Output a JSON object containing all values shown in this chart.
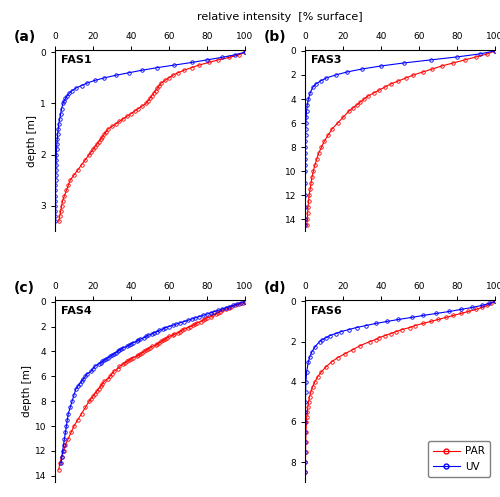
{
  "title": "relative intensity  [% surface]",
  "ylabel": "depth [m]",
  "panels": [
    "(a)",
    "(b)",
    "(c)",
    "(d)"
  ],
  "labels": [
    "FAS1",
    "FAS3",
    "FAS4",
    "FAS6"
  ],
  "par_color": "#FF0000",
  "uv_color": "#0000FF",
  "marker_size": 2.5,
  "line_width": 0.8,
  "fas1": {
    "depth_max": 3.5,
    "ylim_top": -0.05,
    "yticks": [
      0,
      1,
      2,
      3
    ],
    "xlim": [
      0,
      100
    ],
    "par_depth": [
      0.0,
      0.05,
      0.1,
      0.15,
      0.2,
      0.25,
      0.3,
      0.35,
      0.4,
      0.45,
      0.5,
      0.55,
      0.6,
      0.65,
      0.7,
      0.75,
      0.8,
      0.85,
      0.9,
      0.95,
      1.0,
      1.05,
      1.1,
      1.15,
      1.2,
      1.25,
      1.3,
      1.35,
      1.4,
      1.45,
      1.5,
      1.55,
      1.6,
      1.65,
      1.7,
      1.75,
      1.8,
      1.85,
      1.9,
      1.95,
      2.0,
      2.1,
      2.2,
      2.3,
      2.4,
      2.5,
      2.6,
      2.7,
      2.8,
      2.9,
      3.0,
      3.1,
      3.2,
      3.3
    ],
    "par_intensity": [
      100,
      97,
      92,
      86,
      81,
      76,
      72,
      68,
      65,
      62,
      60,
      58,
      56,
      55,
      54,
      53,
      52,
      51,
      50,
      49,
      48,
      46,
      44,
      42,
      40,
      38,
      36,
      34,
      32,
      30,
      28,
      27,
      26,
      25,
      24,
      23,
      22,
      21,
      20,
      19,
      18,
      16,
      14,
      12,
      10,
      8,
      7,
      6,
      5,
      4,
      3.5,
      3.0,
      2.5,
      2.0
    ],
    "uv_depth": [
      0.0,
      0.05,
      0.1,
      0.15,
      0.2,
      0.25,
      0.3,
      0.35,
      0.4,
      0.45,
      0.5,
      0.55,
      0.6,
      0.65,
      0.7,
      0.75,
      0.8,
      0.85,
      0.9,
      0.95,
      1.0,
      1.1,
      1.2,
      1.3,
      1.4,
      1.5,
      1.6,
      1.7,
      1.8,
      1.9,
      2.0,
      2.1,
      2.2,
      2.3,
      2.4,
      2.5,
      2.6,
      2.7,
      2.8,
      2.9,
      3.0,
      3.1,
      3.2,
      3.3
    ],
    "uv_intensity": [
      100,
      95,
      88,
      80,
      72,
      63,
      54,
      46,
      39,
      32,
      26,
      21,
      17,
      14,
      11,
      9,
      7.5,
      6.5,
      5.5,
      4.8,
      4.2,
      3.5,
      3.0,
      2.5,
      2.0,
      1.7,
      1.4,
      1.2,
      1.0,
      0.8,
      0.7,
      0.6,
      0.5,
      0.4,
      0.35,
      0.3,
      0.25,
      0.2,
      0.18,
      0.15,
      0.12,
      0.1,
      0.08,
      0.06
    ]
  },
  "fas3": {
    "depth_max": 15.0,
    "ylim_top": -0.1,
    "yticks": [
      0,
      2,
      4,
      6,
      8,
      10,
      12,
      14
    ],
    "xlim": [
      0,
      100
    ],
    "par_depth": [
      0.0,
      0.25,
      0.5,
      0.75,
      1.0,
      1.25,
      1.5,
      1.75,
      2.0,
      2.25,
      2.5,
      2.75,
      3.0,
      3.25,
      3.5,
      3.75,
      4.0,
      4.25,
      4.5,
      4.75,
      5.0,
      5.5,
      6.0,
      6.5,
      7.0,
      7.5,
      8.0,
      8.5,
      9.0,
      9.5,
      10.0,
      10.5,
      11.0,
      11.5,
      12.0,
      12.5,
      13.0,
      13.5,
      14.0,
      14.5
    ],
    "par_intensity": [
      100,
      96,
      90,
      84,
      78,
      72,
      67,
      62,
      57,
      53,
      49,
      45,
      42,
      39,
      36,
      33,
      31,
      29,
      27,
      25,
      23,
      20,
      17,
      14,
      12,
      10,
      8.5,
      7,
      6,
      5,
      4.2,
      3.5,
      3.0,
      2.5,
      2.0,
      1.7,
      1.4,
      1.2,
      1.0,
      0.8
    ],
    "uv_depth": [
      0.0,
      0.25,
      0.5,
      0.75,
      1.0,
      1.25,
      1.5,
      1.75,
      2.0,
      2.25,
      2.5,
      2.75,
      3.0,
      3.5,
      4.0,
      4.5,
      5.0,
      5.5,
      6.0,
      6.5,
      7.0,
      7.5,
      8.0,
      8.5,
      9.0,
      9.5,
      10.0,
      11.0,
      12.0,
      13.0,
      14.0,
      14.5
    ],
    "uv_intensity": [
      100,
      92,
      80,
      66,
      52,
      40,
      30,
      22,
      16,
      11,
      8,
      5.5,
      4.0,
      2.5,
      1.6,
      1.0,
      0.65,
      0.42,
      0.28,
      0.18,
      0.12,
      0.08,
      0.055,
      0.038,
      0.027,
      0.019,
      0.013,
      0.007,
      0.004,
      0.002,
      0.001,
      0.001
    ]
  },
  "fas4": {
    "depth_max": 14.5,
    "ylim_top": -0.1,
    "yticks": [
      0,
      2,
      4,
      6,
      8,
      10,
      12,
      14
    ],
    "xlim": [
      0,
      100
    ],
    "par_depth": [
      0.0,
      0.1,
      0.2,
      0.3,
      0.4,
      0.5,
      0.6,
      0.7,
      0.8,
      0.9,
      1.0,
      1.1,
      1.2,
      1.3,
      1.4,
      1.5,
      1.6,
      1.7,
      1.8,
      1.9,
      2.0,
      2.1,
      2.2,
      2.3,
      2.4,
      2.5,
      2.6,
      2.7,
      2.8,
      2.9,
      3.0,
      3.1,
      3.2,
      3.3,
      3.4,
      3.5,
      3.6,
      3.7,
      3.8,
      3.9,
      4.0,
      4.1,
      4.2,
      4.3,
      4.4,
      4.5,
      4.6,
      4.7,
      4.8,
      4.9,
      5.0,
      5.2,
      5.4,
      5.6,
      5.8,
      6.0,
      6.2,
      6.4,
      6.6,
      6.8,
      7.0,
      7.2,
      7.4,
      7.6,
      7.8,
      8.0,
      8.5,
      9.0,
      9.5,
      10.0,
      10.5,
      11.0,
      11.5,
      12.0,
      12.5,
      13.0,
      13.5
    ],
    "par_intensity": [
      100,
      99,
      97,
      95,
      93,
      92,
      90,
      88,
      87,
      86,
      85,
      83,
      82,
      80,
      79,
      78,
      77,
      75,
      74,
      73,
      71,
      70,
      68,
      67,
      66,
      65,
      63,
      62,
      60,
      59,
      58,
      57,
      56,
      55,
      54,
      53,
      51,
      50,
      49,
      48,
      47,
      46,
      45,
      44,
      43,
      41,
      40,
      39,
      38,
      37,
      36,
      34,
      33,
      31,
      30,
      29,
      28,
      26,
      25,
      24,
      23,
      22,
      21,
      20,
      19,
      18,
      16,
      14,
      12,
      10,
      8.5,
      7,
      5.5,
      4.5,
      3.5,
      2.5,
      2.0
    ],
    "uv_depth": [
      0.0,
      0.1,
      0.2,
      0.3,
      0.4,
      0.5,
      0.6,
      0.7,
      0.8,
      0.9,
      1.0,
      1.1,
      1.2,
      1.3,
      1.4,
      1.5,
      1.6,
      1.7,
      1.8,
      1.9,
      2.0,
      2.1,
      2.2,
      2.3,
      2.4,
      2.5,
      2.6,
      2.7,
      2.8,
      2.9,
      3.0,
      3.1,
      3.2,
      3.3,
      3.4,
      3.5,
      3.6,
      3.7,
      3.8,
      3.9,
      4.0,
      4.1,
      4.2,
      4.3,
      4.4,
      4.5,
      4.6,
      4.7,
      4.8,
      4.9,
      5.0,
      5.2,
      5.4,
      5.6,
      5.8,
      6.0,
      6.2,
      6.4,
      6.6,
      6.8,
      7.0,
      7.5,
      8.0,
      8.5,
      9.0,
      9.5,
      10.0,
      10.5,
      11.0,
      11.5,
      12.0,
      12.5,
      13.0
    ],
    "uv_intensity": [
      100,
      98,
      96,
      94,
      92,
      90,
      88,
      86,
      84,
      82,
      80,
      78,
      76,
      74,
      72,
      70,
      68,
      66,
      64,
      62,
      60,
      58,
      57,
      55,
      54,
      52,
      51,
      49,
      48,
      47,
      45,
      44,
      43,
      41,
      40,
      39,
      38,
      36,
      35,
      34,
      33,
      32,
      31,
      30,
      29,
      28,
      27,
      26,
      25,
      24,
      23,
      21,
      20,
      19,
      17,
      16,
      15,
      14,
      13,
      12,
      11,
      10,
      9,
      8,
      7,
      6.5,
      6,
      5.5,
      5,
      4.5,
      4,
      3.6,
      3.2
    ]
  },
  "fas6": {
    "depth_max": 9.0,
    "ylim_top": -0.05,
    "yticks": [
      0,
      2,
      4,
      6,
      8
    ],
    "xlim": [
      0,
      100
    ],
    "par_depth": [
      0.0,
      0.1,
      0.2,
      0.3,
      0.4,
      0.5,
      0.6,
      0.7,
      0.8,
      0.9,
      1.0,
      1.1,
      1.2,
      1.3,
      1.4,
      1.5,
      1.6,
      1.7,
      1.8,
      1.9,
      2.0,
      2.2,
      2.4,
      2.6,
      2.8,
      3.0,
      3.25,
      3.5,
      3.75,
      4.0,
      4.25,
      4.5,
      4.75,
      5.0,
      5.25,
      5.5,
      5.75,
      6.0,
      6.5,
      7.0,
      7.5,
      8.0,
      8.5
    ],
    "par_intensity": [
      100,
      98,
      96,
      93,
      90,
      86,
      82,
      78,
      74,
      70,
      66,
      62,
      58,
      55,
      51,
      48,
      45,
      42,
      39,
      37,
      34,
      29,
      25,
      21,
      17,
      14,
      11,
      8.5,
      6.5,
      5.0,
      3.8,
      2.9,
      2.2,
      1.7,
      1.3,
      1.0,
      0.75,
      0.58,
      0.33,
      0.19,
      0.11,
      0.06,
      0.035
    ],
    "uv_depth": [
      0.0,
      0.1,
      0.2,
      0.3,
      0.4,
      0.5,
      0.6,
      0.7,
      0.8,
      0.9,
      1.0,
      1.1,
      1.2,
      1.3,
      1.4,
      1.5,
      1.6,
      1.7,
      1.8,
      1.9,
      2.0,
      2.25,
      2.5,
      2.75,
      3.0,
      3.5,
      4.0,
      4.5,
      5.0,
      5.5,
      6.0,
      6.5,
      7.0,
      7.5,
      8.0,
      8.5
    ],
    "uv_intensity": [
      100,
      97,
      93,
      88,
      82,
      76,
      69,
      62,
      56,
      49,
      43,
      37,
      32,
      27,
      23,
      19,
      16,
      13,
      11,
      9,
      7.5,
      5.2,
      3.5,
      2.4,
      1.6,
      0.7,
      0.3,
      0.13,
      0.055,
      0.023,
      0.01,
      0.004,
      0.002,
      0.001,
      0.0004,
      0.0002
    ]
  },
  "legend_entries": [
    "PAR",
    "UV"
  ],
  "background_color": "#FFFFFF"
}
